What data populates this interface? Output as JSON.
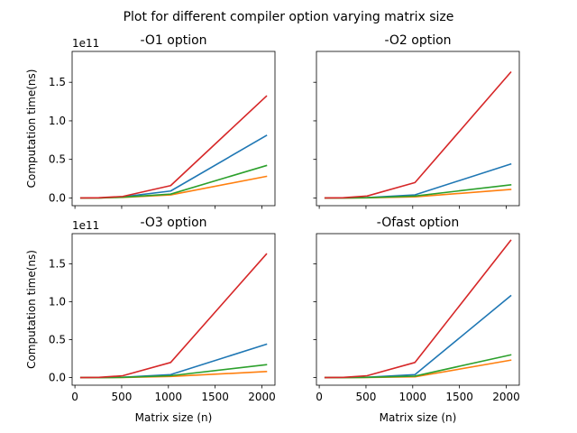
{
  "figure": {
    "suptitle": "Plot for different compiler option varying matrix size"
  },
  "chart_data": [
    {
      "type": "line",
      "title": "-O1 option",
      "ylabel": "Computation time(ns)",
      "xlabel": "",
      "y_offset_label": "1e11",
      "x": [
        64,
        256,
        512,
        1024,
        2048
      ],
      "xlim": [
        -30,
        2140
      ],
      "ylim": [
        -0.1,
        1.9
      ],
      "x_ticks": [
        0,
        500,
        1000,
        1500,
        2000
      ],
      "x_tick_labels": [
        "",
        "",
        "",
        "",
        ""
      ],
      "y_ticks": [
        0.0,
        0.5,
        1.0,
        1.5
      ],
      "y_tick_labels": [
        "0.0",
        "0.5",
        "1.0",
        "1.5"
      ],
      "series": [
        {
          "color": "#1f77b4",
          "values": [
            0.0,
            0.0,
            0.015,
            0.09,
            0.81
          ]
        },
        {
          "color": "#ff7f0e",
          "values": [
            0.0,
            0.0,
            0.008,
            0.04,
            0.28
          ]
        },
        {
          "color": "#2ca02c",
          "values": [
            0.0,
            0.0,
            0.01,
            0.05,
            0.42
          ]
        },
        {
          "color": "#d62728",
          "values": [
            0.0,
            0.003,
            0.02,
            0.16,
            1.32
          ]
        }
      ]
    },
    {
      "type": "line",
      "title": "-O2 option",
      "ylabel": "",
      "xlabel": "",
      "y_offset_label": "",
      "x": [
        64,
        256,
        512,
        1024,
        2048
      ],
      "xlim": [
        -30,
        2140
      ],
      "ylim": [
        -0.1,
        1.9
      ],
      "x_ticks": [
        0,
        500,
        1000,
        1500,
        2000
      ],
      "x_tick_labels": [
        "",
        "",
        "",
        "",
        ""
      ],
      "y_ticks": [
        0.0,
        0.5,
        1.0,
        1.5
      ],
      "y_tick_labels": [
        "",
        "",
        "",
        ""
      ],
      "series": [
        {
          "color": "#1f77b4",
          "values": [
            0.0,
            0.0,
            0.005,
            0.04,
            0.44
          ]
        },
        {
          "color": "#ff7f0e",
          "values": [
            0.0,
            0.0,
            0.002,
            0.015,
            0.11
          ]
        },
        {
          "color": "#2ca02c",
          "values": [
            0.0,
            0.0,
            0.003,
            0.025,
            0.17
          ]
        },
        {
          "color": "#d62728",
          "values": [
            0.0,
            0.003,
            0.025,
            0.2,
            1.63
          ]
        }
      ]
    },
    {
      "type": "line",
      "title": "-O3 option",
      "ylabel": "Computation time(ns)",
      "xlabel": "Matrix size (n)",
      "y_offset_label": "1e11",
      "x": [
        64,
        256,
        512,
        1024,
        2048
      ],
      "xlim": [
        -30,
        2140
      ],
      "ylim": [
        -0.1,
        1.9
      ],
      "x_ticks": [
        0,
        500,
        1000,
        1500,
        2000
      ],
      "x_tick_labels": [
        "0",
        "500",
        "1000",
        "1500",
        "2000"
      ],
      "y_ticks": [
        0.0,
        0.5,
        1.0,
        1.5
      ],
      "y_tick_labels": [
        "0.0",
        "0.5",
        "1.0",
        "1.5"
      ],
      "series": [
        {
          "color": "#1f77b4",
          "values": [
            0.0,
            0.0,
            0.005,
            0.04,
            0.44
          ]
        },
        {
          "color": "#ff7f0e",
          "values": [
            0.0,
            0.0,
            0.002,
            0.015,
            0.08
          ]
        },
        {
          "color": "#2ca02c",
          "values": [
            0.0,
            0.0,
            0.003,
            0.025,
            0.17
          ]
        },
        {
          "color": "#d62728",
          "values": [
            0.0,
            0.003,
            0.025,
            0.2,
            1.63
          ]
        }
      ]
    },
    {
      "type": "line",
      "title": "-Ofast option",
      "ylabel": "",
      "xlabel": "Matrix size (n)",
      "y_offset_label": "",
      "x": [
        64,
        256,
        512,
        1024,
        2048
      ],
      "xlim": [
        -30,
        2140
      ],
      "ylim": [
        -0.1,
        1.9
      ],
      "x_ticks": [
        0,
        500,
        1000,
        1500,
        2000
      ],
      "x_tick_labels": [
        "0",
        "500",
        "1000",
        "1500",
        "2000"
      ],
      "y_ticks": [
        0.0,
        0.5,
        1.0,
        1.5
      ],
      "y_tick_labels": [
        "",
        "",
        "",
        ""
      ],
      "series": [
        {
          "color": "#1f77b4",
          "values": [
            0.0,
            0.0,
            0.005,
            0.04,
            1.08
          ]
        },
        {
          "color": "#ff7f0e",
          "values": [
            0.0,
            0.0,
            0.002,
            0.01,
            0.23
          ]
        },
        {
          "color": "#2ca02c",
          "values": [
            0.0,
            0.0,
            0.003,
            0.02,
            0.3
          ]
        },
        {
          "color": "#d62728",
          "values": [
            0.0,
            0.003,
            0.025,
            0.2,
            1.81
          ]
        }
      ]
    }
  ]
}
